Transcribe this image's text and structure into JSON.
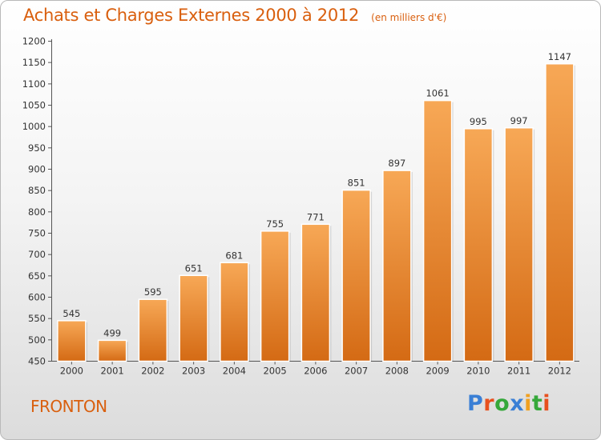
{
  "header": {
    "title": "Achats et Charges Externes 2000 à 2012",
    "unit": "(en milliers d'€)"
  },
  "location": "FRONTON",
  "logo": {
    "text": "Proxiti",
    "letter_colors": [
      "#3a7fd5",
      "#e8501e",
      "#35a83a",
      "#3a7fd5",
      "#f0a020",
      "#35a83a",
      "#e8501e"
    ]
  },
  "colors": {
    "bar_top": "#f7a856",
    "bar_bottom": "#d46a14",
    "title": "#d95f0e"
  },
  "chart_data": {
    "type": "bar",
    "title": "Achats et Charges Externes 2000 à 2012",
    "categories": [
      "2000",
      "2001",
      "2002",
      "2003",
      "2004",
      "2005",
      "2006",
      "2007",
      "2008",
      "2009",
      "2010",
      "2011",
      "2012"
    ],
    "values": [
      545,
      499,
      595,
      651,
      681,
      755,
      771,
      851,
      897,
      1061,
      995,
      997,
      1147
    ],
    "ylim": [
      450,
      1200
    ],
    "yticks": [
      450,
      500,
      550,
      600,
      650,
      700,
      750,
      800,
      850,
      900,
      950,
      1000,
      1050,
      1100,
      1150,
      1200
    ],
    "grid": false,
    "legend": "none",
    "data_labels": true
  }
}
